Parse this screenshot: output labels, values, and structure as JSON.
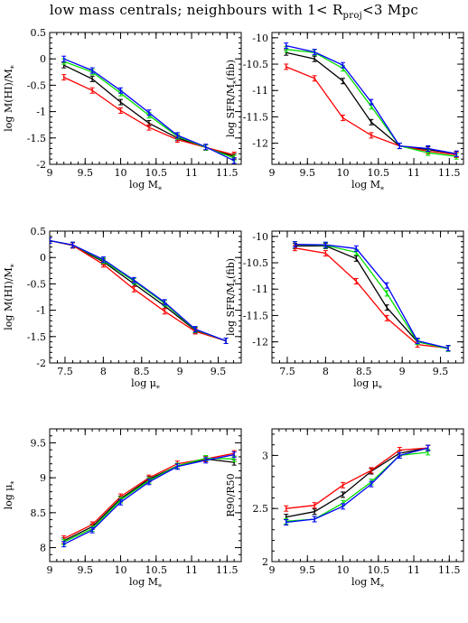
{
  "title": {
    "prefix": "low mass centrals; neighbours with 1< R",
    "subscript": "proj",
    "suffix": "<3 Mpc"
  },
  "colors": {
    "black": "#000000",
    "red": "#ff0000",
    "green": "#00dd00",
    "blue": "#0000ff"
  },
  "chart_data": [
    {
      "type": "line",
      "xlabel": "log M*",
      "ylabel": "log M(HI)/M*",
      "xlim": [
        9,
        11.7
      ],
      "ylim": [
        -2,
        0.5
      ],
      "xticks": [
        9,
        9.5,
        10,
        10.5,
        11,
        11.5
      ],
      "xtick_labels": [
        "9",
        "9.5",
        "10",
        "10.5",
        "11",
        "11.5"
      ],
      "yticks": [
        -2,
        -1.5,
        -1,
        -0.5,
        0,
        0.5
      ],
      "ytick_labels": [
        "-2",
        "-1.5",
        "-1",
        "-0.5",
        "0",
        "0.5"
      ],
      "x": [
        9.2,
        9.6,
        10.0,
        10.4,
        10.8,
        11.2,
        11.6
      ],
      "series": [
        {
          "color": "black",
          "values": [
            -0.12,
            -0.38,
            -0.82,
            -1.22,
            -1.5,
            -1.68,
            -1.85
          ]
        },
        {
          "color": "red",
          "values": [
            -0.35,
            -0.6,
            -0.98,
            -1.3,
            -1.53,
            -1.68,
            -1.82
          ]
        },
        {
          "color": "green",
          "values": [
            -0.05,
            -0.25,
            -0.65,
            -1.07,
            -1.47,
            -1.68,
            -1.88
          ]
        },
        {
          "color": "blue",
          "values": [
            0.0,
            -0.22,
            -0.6,
            -1.02,
            -1.45,
            -1.67,
            -1.93
          ]
        }
      ]
    },
    {
      "type": "line",
      "xlabel": "log M*",
      "ylabel": "log SFR/M*(fib)",
      "xlim": [
        9,
        11.7
      ],
      "ylim": [
        -12.4,
        -9.9
      ],
      "xticks": [
        9,
        9.5,
        10,
        10.5,
        11,
        11.5
      ],
      "xtick_labels": [
        "9",
        "9.5",
        "10",
        "10.5",
        "11",
        "11.5"
      ],
      "yticks": [
        -12,
        -11.5,
        -11,
        -10.5,
        -10
      ],
      "ytick_labels": [
        "-12",
        "-11.5",
        "-11",
        "-10.5",
        "-10"
      ],
      "x": [
        9.2,
        9.6,
        10.0,
        10.4,
        10.8,
        11.2,
        11.6
      ],
      "series": [
        {
          "color": "black",
          "values": [
            -10.28,
            -10.4,
            -10.82,
            -11.6,
            -12.05,
            -12.12,
            -12.2
          ]
        },
        {
          "color": "red",
          "values": [
            -10.55,
            -10.77,
            -11.52,
            -11.85,
            -12.05,
            -12.15,
            -12.22
          ]
        },
        {
          "color": "green",
          "values": [
            -10.22,
            -10.28,
            -10.58,
            -11.3,
            -12.05,
            -12.18,
            -12.25
          ]
        },
        {
          "color": "blue",
          "values": [
            -10.15,
            -10.27,
            -10.52,
            -11.22,
            -12.05,
            -12.1,
            -12.2
          ]
        }
      ]
    },
    {
      "type": "line",
      "xlabel": "log μ*",
      "ylabel": "log M(HI)/M*",
      "xlim": [
        7.3,
        9.8
      ],
      "ylim": [
        -2,
        0.5
      ],
      "xticks": [
        7.5,
        8,
        8.5,
        9,
        9.5
      ],
      "xtick_labels": [
        "7.5",
        "8",
        "8.5",
        "9",
        "9.5"
      ],
      "yticks": [
        -2,
        -1.5,
        -1,
        -0.5,
        0,
        0.5
      ],
      "ytick_labels": [
        "-2",
        "-1.5",
        "-1",
        "-0.5",
        "0",
        "0.5"
      ],
      "x": [
        7.3,
        7.6,
        8.0,
        8.4,
        8.8,
        9.2,
        9.6
      ],
      "series": [
        {
          "color": "black",
          "values": [
            0.32,
            0.23,
            -0.08,
            -0.5,
            -0.92,
            -1.38,
            -1.58
          ]
        },
        {
          "color": "red",
          "values": [
            0.32,
            0.23,
            -0.13,
            -0.6,
            -1.02,
            -1.4,
            -1.58
          ]
        },
        {
          "color": "green",
          "values": [
            0.32,
            0.24,
            -0.06,
            -0.45,
            -0.87,
            -1.37,
            -1.58
          ]
        },
        {
          "color": "blue",
          "values": [
            0.32,
            0.24,
            -0.04,
            -0.43,
            -0.85,
            -1.36,
            -1.58
          ]
        }
      ]
    },
    {
      "type": "line",
      "xlabel": "log μ*",
      "ylabel": "log SFR/M*(fib)",
      "xlim": [
        7.3,
        9.8
      ],
      "ylim": [
        -12.4,
        -9.9
      ],
      "xticks": [
        7.5,
        8,
        8.5,
        9,
        9.5
      ],
      "xtick_labels": [
        "7.5",
        "8",
        "8.5",
        "9",
        "9.5"
      ],
      "yticks": [
        -12,
        -11.5,
        -11,
        -10.5,
        -10
      ],
      "ytick_labels": [
        "-12",
        "-11.5",
        "-11",
        "-10.5",
        "-10"
      ],
      "x": [
        7.6,
        8.0,
        8.4,
        8.8,
        9.2,
        9.6
      ],
      "series": [
        {
          "color": "black",
          "values": [
            -10.18,
            -10.18,
            -10.42,
            -11.35,
            -12.0,
            -12.12
          ]
        },
        {
          "color": "red",
          "values": [
            -10.22,
            -10.32,
            -10.85,
            -11.55,
            -12.05,
            -12.12
          ]
        },
        {
          "color": "green",
          "values": [
            -10.15,
            -10.17,
            -10.3,
            -11.08,
            -12.0,
            -12.13
          ]
        },
        {
          "color": "blue",
          "values": [
            -10.15,
            -10.16,
            -10.23,
            -10.93,
            -11.98,
            -12.12
          ]
        }
      ]
    },
    {
      "type": "line",
      "xlabel": "log M*",
      "ylabel": "log μ*",
      "xlim": [
        9,
        11.7
      ],
      "ylim": [
        7.8,
        9.7
      ],
      "xticks": [
        9,
        9.5,
        10,
        10.5,
        11,
        11.5
      ],
      "xtick_labels": [
        "9",
        "9.5",
        "10",
        "10.5",
        "11",
        "11.5"
      ],
      "yticks": [
        8,
        8.5,
        9,
        9.5
      ],
      "ytick_labels": [
        "8",
        "8.5",
        "9",
        "9.5"
      ],
      "x": [
        9.2,
        9.6,
        10.0,
        10.4,
        10.8,
        11.2,
        11.6
      ],
      "series": [
        {
          "color": "black",
          "values": [
            8.1,
            8.3,
            8.7,
            8.98,
            9.17,
            9.27,
            9.22
          ]
        },
        {
          "color": "red",
          "values": [
            8.13,
            8.33,
            8.73,
            9.0,
            9.2,
            9.27,
            9.35
          ]
        },
        {
          "color": "green",
          "values": [
            8.08,
            8.27,
            8.68,
            8.96,
            9.17,
            9.28,
            9.27
          ]
        },
        {
          "color": "blue",
          "values": [
            8.05,
            8.25,
            8.65,
            8.94,
            9.16,
            9.25,
            9.33
          ]
        }
      ]
    },
    {
      "type": "line",
      "xlabel": "log M*",
      "ylabel": "R90/R50",
      "xlim": [
        9,
        11.7
      ],
      "ylim": [
        2,
        3.25
      ],
      "xticks": [
        9,
        9.5,
        10,
        10.5,
        11,
        11.5
      ],
      "xtick_labels": [
        "9",
        "9.5",
        "10",
        "10.5",
        "11",
        "11.5"
      ],
      "yticks": [
        2,
        2.5,
        3
      ],
      "ytick_labels": [
        "2",
        "2.5",
        "3"
      ],
      "x": [
        9.2,
        9.6,
        10.0,
        10.4,
        10.8,
        11.2
      ],
      "series": [
        {
          "color": "black",
          "values": [
            2.42,
            2.47,
            2.63,
            2.85,
            3.02,
            3.07
          ]
        },
        {
          "color": "red",
          "values": [
            2.5,
            2.53,
            2.72,
            2.86,
            3.05,
            3.07
          ]
        },
        {
          "color": "green",
          "values": [
            2.38,
            2.4,
            2.55,
            2.75,
            3.0,
            3.03
          ]
        },
        {
          "color": "blue",
          "values": [
            2.37,
            2.4,
            2.52,
            2.73,
            3.0,
            3.07
          ]
        }
      ]
    }
  ]
}
